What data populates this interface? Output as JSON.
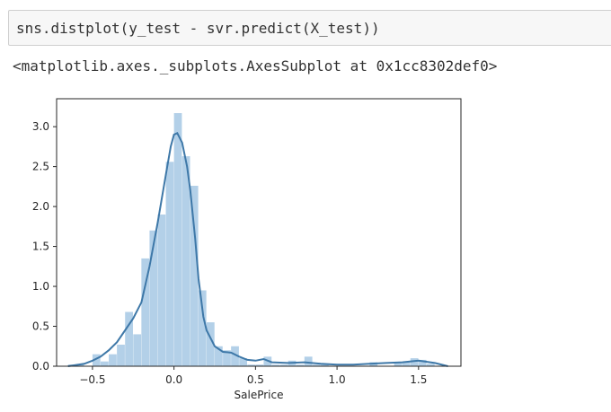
{
  "cell": {
    "code": "sns.distplot(y_test - svr.predict(X_test))",
    "output": "<matplotlib.axes._subplots.AxesSubplot at 0x1cc8302def0>"
  },
  "chart_data": {
    "type": "histogram",
    "xlabel": "SalePrice",
    "ylabel": "",
    "xlim": [
      -0.72,
      1.76
    ],
    "ylim": [
      0,
      3.35
    ],
    "xticks": [
      -0.5,
      0.0,
      0.5,
      1.0,
      1.5
    ],
    "xtick_labels": [
      "−0.5",
      "0.0",
      "0.5",
      "1.0",
      "1.5"
    ],
    "yticks": [
      0.0,
      0.5,
      1.0,
      1.5,
      2.0,
      2.5,
      3.0
    ],
    "ytick_labels": [
      "0.0",
      "0.5",
      "1.0",
      "1.5",
      "2.0",
      "2.5",
      "3.0"
    ],
    "grid": false,
    "bin_width": 0.05,
    "bins": [
      {
        "x0": -0.65,
        "value": 0.02
      },
      {
        "x0": -0.6,
        "value": 0.02
      },
      {
        "x0": -0.55,
        "value": 0.0
      },
      {
        "x0": -0.5,
        "value": 0.15
      },
      {
        "x0": -0.45,
        "value": 0.06
      },
      {
        "x0": -0.4,
        "value": 0.15
      },
      {
        "x0": -0.35,
        "value": 0.27
      },
      {
        "x0": -0.3,
        "value": 0.68
      },
      {
        "x0": -0.25,
        "value": 0.4
      },
      {
        "x0": -0.2,
        "value": 1.35
      },
      {
        "x0": -0.15,
        "value": 1.7
      },
      {
        "x0": -0.1,
        "value": 1.9
      },
      {
        "x0": -0.05,
        "value": 2.56
      },
      {
        "x0": 0.0,
        "value": 3.17
      },
      {
        "x0": 0.05,
        "value": 2.63
      },
      {
        "x0": 0.1,
        "value": 2.26
      },
      {
        "x0": 0.15,
        "value": 0.95
      },
      {
        "x0": 0.2,
        "value": 0.55
      },
      {
        "x0": 0.25,
        "value": 0.25
      },
      {
        "x0": 0.3,
        "value": 0.2
      },
      {
        "x0": 0.35,
        "value": 0.25
      },
      {
        "x0": 0.4,
        "value": 0.1
      },
      {
        "x0": 0.45,
        "value": 0.02
      },
      {
        "x0": 0.5,
        "value": 0.02
      },
      {
        "x0": 0.55,
        "value": 0.12
      },
      {
        "x0": 0.6,
        "value": 0.02
      },
      {
        "x0": 0.65,
        "value": 0.02
      },
      {
        "x0": 0.7,
        "value": 0.07
      },
      {
        "x0": 0.75,
        "value": 0.02
      },
      {
        "x0": 0.8,
        "value": 0.12
      },
      {
        "x0": 0.85,
        "value": 0.02
      },
      {
        "x0": 0.9,
        "value": 0.02
      },
      {
        "x0": 1.2,
        "value": 0.05
      },
      {
        "x0": 1.35,
        "value": 0.04
      },
      {
        "x0": 1.4,
        "value": 0.05
      },
      {
        "x0": 1.45,
        "value": 0.1
      },
      {
        "x0": 1.5,
        "value": 0.08
      },
      {
        "x0": 1.55,
        "value": 0.03
      }
    ],
    "kde_x": [
      -0.65,
      -0.55,
      -0.5,
      -0.45,
      -0.4,
      -0.35,
      -0.3,
      -0.25,
      -0.2,
      -0.15,
      -0.1,
      -0.05,
      -0.02,
      0.0,
      0.02,
      0.05,
      0.08,
      0.1,
      0.13,
      0.15,
      0.18,
      0.2,
      0.25,
      0.3,
      0.35,
      0.4,
      0.45,
      0.5,
      0.55,
      0.6,
      0.7,
      0.8,
      0.9,
      1.0,
      1.1,
      1.2,
      1.3,
      1.4,
      1.5,
      1.6,
      1.68
    ],
    "kde_y": [
      0.0,
      0.03,
      0.07,
      0.12,
      0.2,
      0.3,
      0.45,
      0.6,
      0.8,
      1.25,
      1.8,
      2.4,
      2.75,
      2.9,
      2.92,
      2.8,
      2.5,
      2.2,
      1.6,
      1.1,
      0.62,
      0.45,
      0.25,
      0.18,
      0.17,
      0.12,
      0.08,
      0.07,
      0.09,
      0.05,
      0.04,
      0.05,
      0.03,
      0.02,
      0.02,
      0.03,
      0.04,
      0.05,
      0.07,
      0.04,
      0.0
    ],
    "colors": {
      "hist": "#4a90c8",
      "kde": "#3e78a8",
      "axes": "#262626"
    }
  }
}
